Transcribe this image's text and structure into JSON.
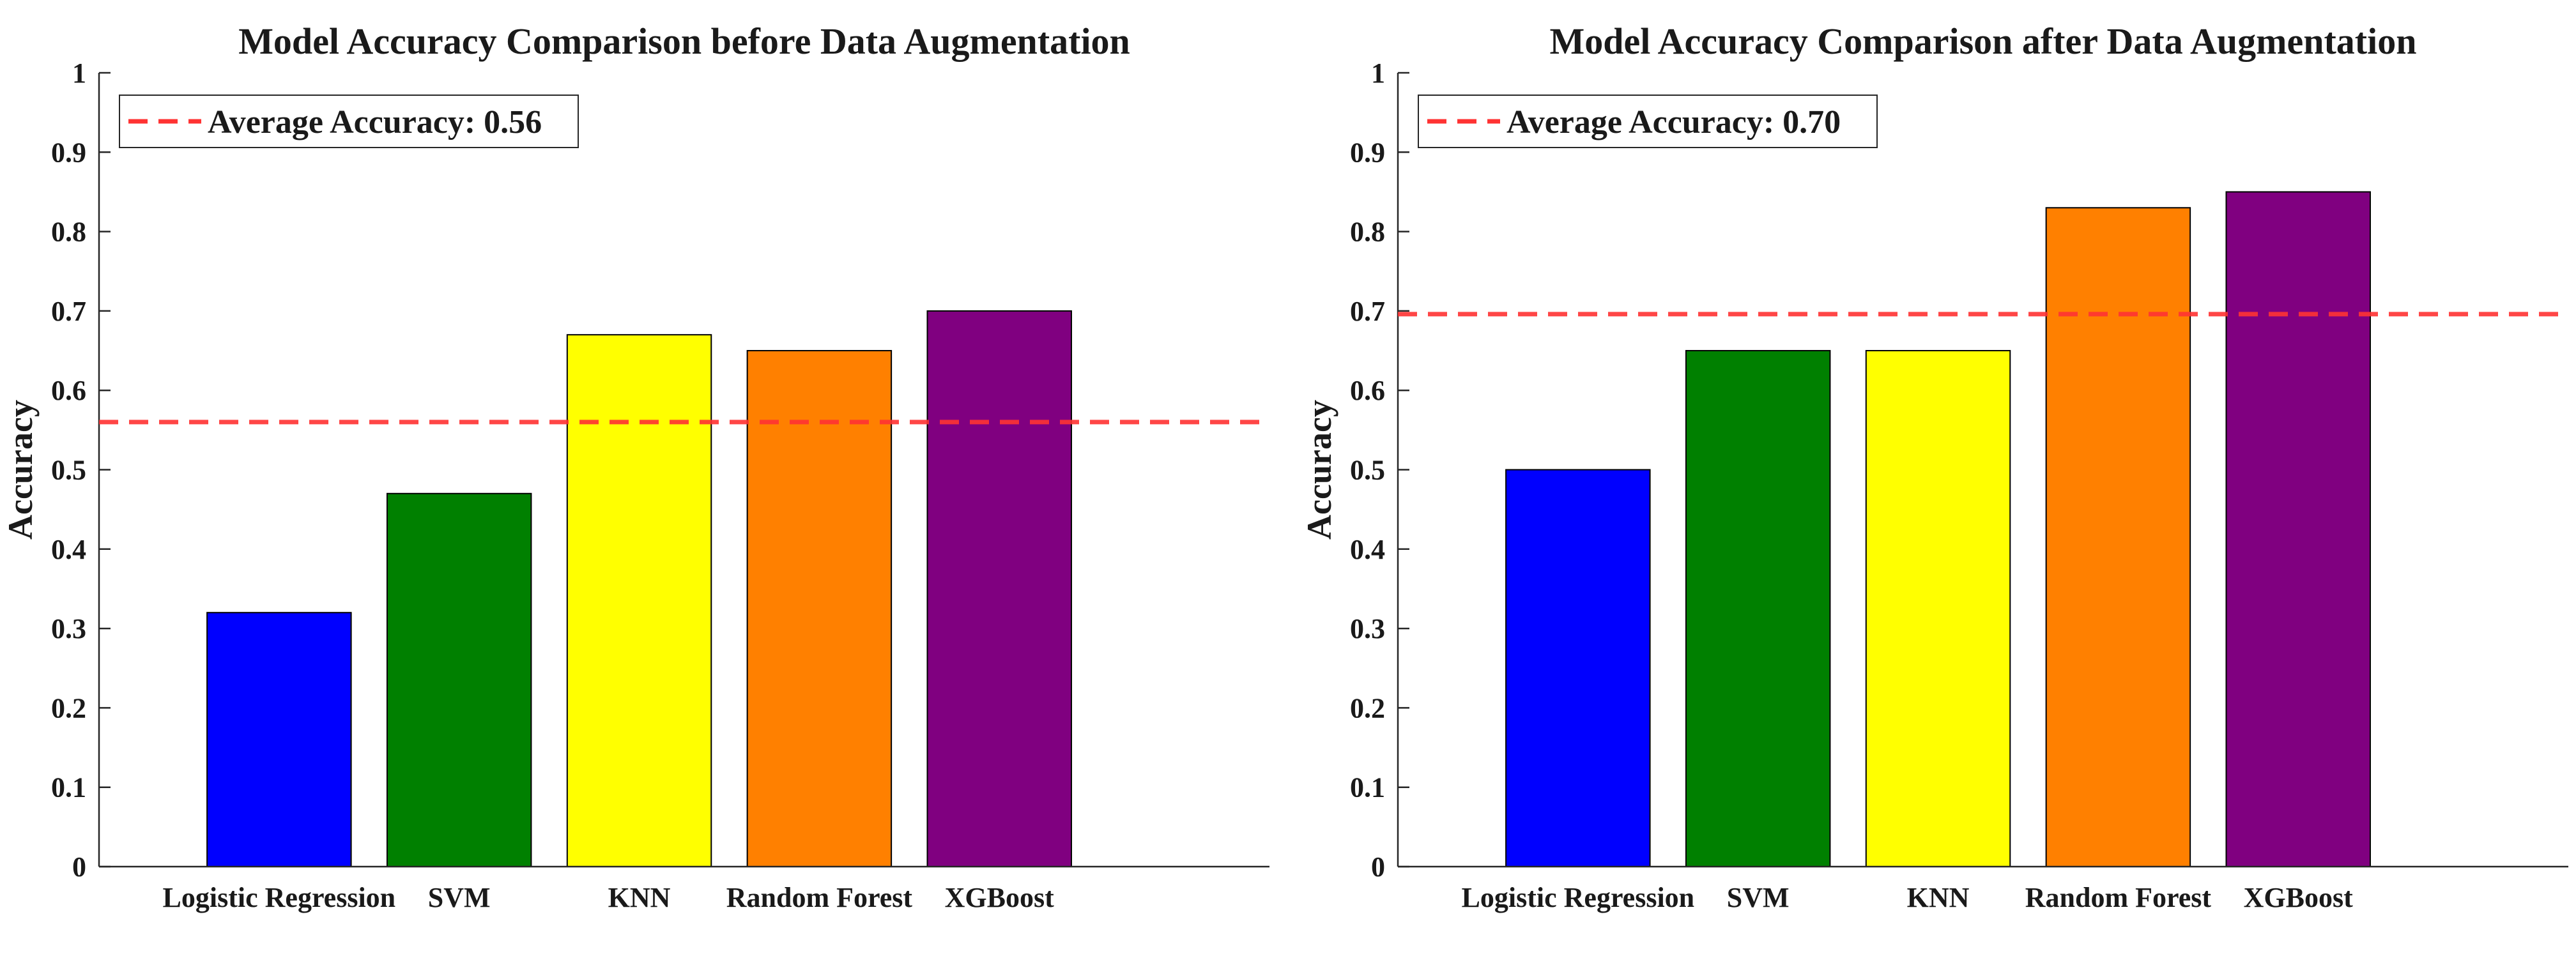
{
  "chart_data": [
    {
      "type": "bar",
      "title": "Model Accuracy Comparison before Data Augmentation",
      "xlabel": "",
      "ylabel": "Accuracy",
      "ylim": [
        0,
        1
      ],
      "yticks": [
        "0",
        "0.1",
        "0.2",
        "0.3",
        "0.4",
        "0.5",
        "0.6",
        "0.7",
        "0.8",
        "0.9",
        "1"
      ],
      "categories": [
        "Logistic Regression",
        "SVM",
        "KNN",
        "Random Forest",
        "XGBoost"
      ],
      "values": [
        0.32,
        0.47,
        0.67,
        0.65,
        0.7
      ],
      "colors": [
        "#0000ff",
        "#008000",
        "#ffff00",
        "#ff8000",
        "#800080"
      ],
      "average": 0.56,
      "average_color": "#ff3333",
      "legend": {
        "label": "Average Accuracy: 0.56",
        "position": "top-left"
      },
      "grid": false
    },
    {
      "type": "bar",
      "title": "Model Accuracy Comparison after Data Augmentation",
      "xlabel": "",
      "ylabel": "Accuracy",
      "ylim": [
        0,
        1
      ],
      "yticks": [
        "0",
        "0.1",
        "0.2",
        "0.3",
        "0.4",
        "0.5",
        "0.6",
        "0.7",
        "0.8",
        "0.9",
        "1"
      ],
      "categories": [
        "Logistic Regression",
        "SVM",
        "KNN",
        "Random Forest",
        "XGBoost"
      ],
      "values": [
        0.5,
        0.65,
        0.65,
        0.83,
        0.85
      ],
      "colors": [
        "#0000ff",
        "#008000",
        "#ffff00",
        "#ff8000",
        "#800080"
      ],
      "average": 0.696,
      "average_color": "#ff3333",
      "legend": {
        "label": "Average Accuracy: 0.70",
        "position": "top-left"
      },
      "grid": false
    }
  ]
}
